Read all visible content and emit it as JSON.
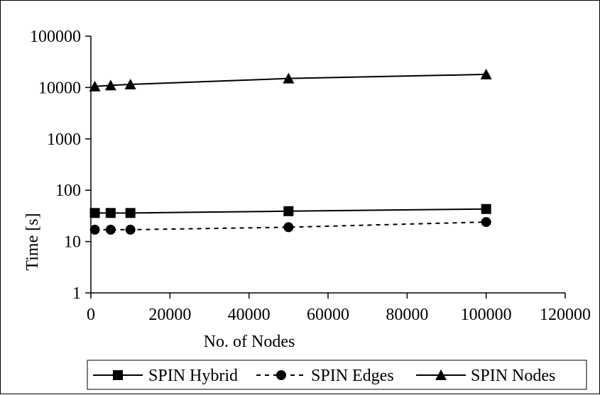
{
  "chart_data": {
    "type": "line",
    "title": "",
    "xlabel": "No. of Nodes",
    "ylabel": "Time [s]",
    "xlim": [
      0,
      120000
    ],
    "ylim": [
      1,
      100000
    ],
    "yscale": "log",
    "x_ticks": [
      0,
      20000,
      40000,
      60000,
      80000,
      100000,
      120000
    ],
    "x_tick_labels": [
      "0",
      "20000",
      "40000",
      "60000",
      "80000",
      "100000",
      "120000"
    ],
    "y_ticks": [
      1,
      10,
      100,
      1000,
      10000,
      100000
    ],
    "y_tick_labels": [
      "1",
      "10",
      "100",
      "1000",
      "10000",
      "100000"
    ],
    "grid": false,
    "legend_position": "bottom",
    "series": [
      {
        "name": "SPIN Hybrid",
        "marker": "square",
        "line_style": "solid",
        "x": [
          1000,
          5000,
          10000,
          50000,
          100000
        ],
        "y": [
          36,
          36,
          36,
          39,
          43
        ]
      },
      {
        "name": "SPIN Edges",
        "marker": "circle",
        "line_style": "dashed",
        "x": [
          1000,
          5000,
          10000,
          50000,
          100000
        ],
        "y": [
          17,
          17,
          17,
          19,
          24
        ]
      },
      {
        "name": "SPIN Nodes",
        "marker": "triangle",
        "line_style": "solid",
        "x": [
          1000,
          5000,
          10000,
          50000,
          100000
        ],
        "y": [
          10500,
          11000,
          11500,
          15000,
          18000
        ]
      }
    ],
    "colors": {
      "line": "#000000",
      "background": "#ffffff"
    }
  }
}
